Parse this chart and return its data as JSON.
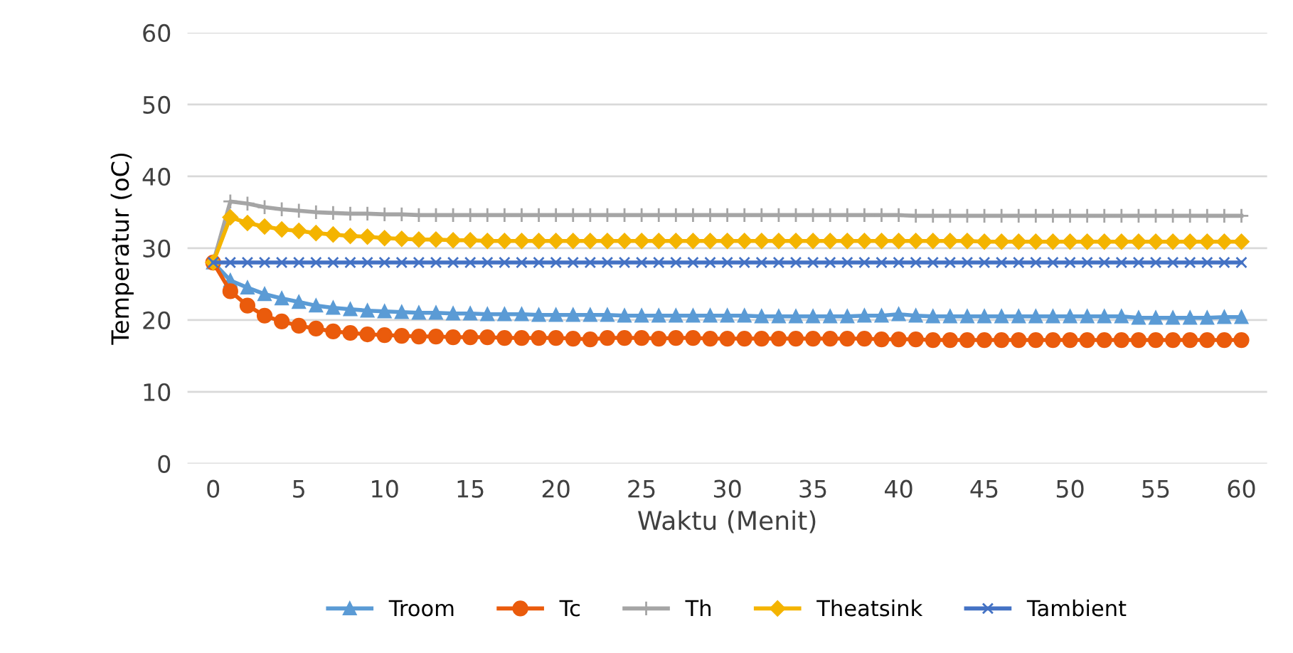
{
  "chart_data": {
    "type": "line",
    "xlabel": "Waktu (Menit)",
    "ylabel": "Temperatur (oC)",
    "x": [
      0,
      1,
      2,
      3,
      4,
      5,
      6,
      7,
      8,
      9,
      10,
      11,
      12,
      13,
      14,
      15,
      16,
      17,
      18,
      19,
      20,
      21,
      22,
      23,
      24,
      25,
      26,
      27,
      28,
      29,
      30,
      31,
      32,
      33,
      34,
      35,
      36,
      37,
      38,
      39,
      40,
      41,
      42,
      43,
      44,
      45,
      46,
      47,
      48,
      49,
      50,
      51,
      52,
      53,
      54,
      55,
      56,
      57,
      58,
      59,
      60
    ],
    "series": [
      {
        "name": "Troom",
        "color": "#5b9bd5",
        "marker": "triangle",
        "values": [
          28,
          25.5,
          24.5,
          23.6,
          23,
          22.5,
          22,
          21.7,
          21.5,
          21.3,
          21.2,
          21.1,
          21,
          21,
          20.9,
          20.9,
          20.8,
          20.8,
          20.8,
          20.7,
          20.7,
          20.7,
          20.7,
          20.7,
          20.6,
          20.6,
          20.6,
          20.6,
          20.6,
          20.6,
          20.6,
          20.6,
          20.5,
          20.5,
          20.5,
          20.5,
          20.5,
          20.5,
          20.6,
          20.6,
          20.8,
          20.6,
          20.5,
          20.5,
          20.5,
          20.5,
          20.5,
          20.5,
          20.5,
          20.5,
          20.5,
          20.5,
          20.5,
          20.5,
          20.3,
          20.3,
          20.3,
          20.3,
          20.3,
          20.4,
          20.4
        ]
      },
      {
        "name": "Tc",
        "color": "#ea5b0c",
        "marker": "circle",
        "values": [
          28,
          24,
          22,
          20.6,
          19.8,
          19.2,
          18.8,
          18.4,
          18.2,
          18,
          17.9,
          17.8,
          17.7,
          17.7,
          17.6,
          17.6,
          17.6,
          17.5,
          17.5,
          17.5,
          17.5,
          17.4,
          17.3,
          17.5,
          17.5,
          17.5,
          17.4,
          17.5,
          17.5,
          17.4,
          17.4,
          17.4,
          17.4,
          17.4,
          17.4,
          17.4,
          17.4,
          17.4,
          17.4,
          17.3,
          17.3,
          17.3,
          17.2,
          17.2,
          17.2,
          17.2,
          17.2,
          17.2,
          17.2,
          17.2,
          17.2,
          17.2,
          17.2,
          17.2,
          17.2,
          17.2,
          17.2,
          17.2,
          17.2,
          17.2,
          17.2
        ]
      },
      {
        "name": "Th",
        "color": "#a5a5a5",
        "marker": "cross",
        "values": [
          28,
          36.5,
          36.2,
          35.7,
          35.4,
          35.2,
          35,
          34.9,
          34.8,
          34.8,
          34.7,
          34.7,
          34.6,
          34.6,
          34.6,
          34.6,
          34.6,
          34.6,
          34.6,
          34.6,
          34.6,
          34.6,
          34.6,
          34.6,
          34.6,
          34.6,
          34.6,
          34.6,
          34.6,
          34.6,
          34.6,
          34.6,
          34.6,
          34.6,
          34.6,
          34.6,
          34.6,
          34.6,
          34.6,
          34.6,
          34.6,
          34.5,
          34.5,
          34.5,
          34.5,
          34.5,
          34.5,
          34.5,
          34.5,
          34.5,
          34.5,
          34.5,
          34.5,
          34.5,
          34.5,
          34.5,
          34.5,
          34.5,
          34.5,
          34.5,
          34.5
        ]
      },
      {
        "name": "Theatsink",
        "color": "#f4b400",
        "marker": "diamond",
        "values": [
          28,
          34.3,
          33.5,
          33,
          32.6,
          32.4,
          32.1,
          31.9,
          31.7,
          31.6,
          31.4,
          31.3,
          31.2,
          31.2,
          31.1,
          31.1,
          31,
          31,
          31,
          31,
          31,
          31,
          31,
          31,
          31,
          31,
          31,
          31,
          31,
          31,
          31,
          31,
          31,
          31,
          31,
          31,
          31,
          31,
          31,
          31,
          31,
          31,
          31,
          31,
          31,
          30.9,
          30.9,
          30.9,
          30.9,
          30.9,
          30.9,
          30.9,
          30.9,
          30.9,
          30.9,
          30.9,
          30.9,
          30.9,
          30.9,
          30.9,
          30.9
        ]
      },
      {
        "name": "Tambient",
        "color": "#4472c4",
        "marker": "x",
        "values": [
          28,
          28,
          28,
          28,
          28,
          28,
          28,
          28,
          28,
          28,
          28,
          28,
          28,
          28,
          28,
          28,
          28,
          28,
          28,
          28,
          28,
          28,
          28,
          28,
          28,
          28,
          28,
          28,
          28,
          28,
          28,
          28,
          28,
          28,
          28,
          28,
          28,
          28,
          28,
          28,
          28,
          28,
          28,
          28,
          28,
          28,
          28,
          28,
          28,
          28,
          28,
          28,
          28,
          28,
          28,
          28,
          28,
          28,
          28,
          28,
          28
        ]
      }
    ],
    "xlim": [
      -1.5,
      61.5
    ],
    "xticks": [
      0,
      5,
      10,
      15,
      20,
      25,
      30,
      35,
      40,
      45,
      50,
      55,
      60
    ],
    "ylim": [
      0,
      60
    ],
    "yticks": [
      0,
      10,
      20,
      30,
      40,
      50,
      60
    ],
    "grid": "y",
    "legend": "bottom",
    "line_style": "solid"
  }
}
